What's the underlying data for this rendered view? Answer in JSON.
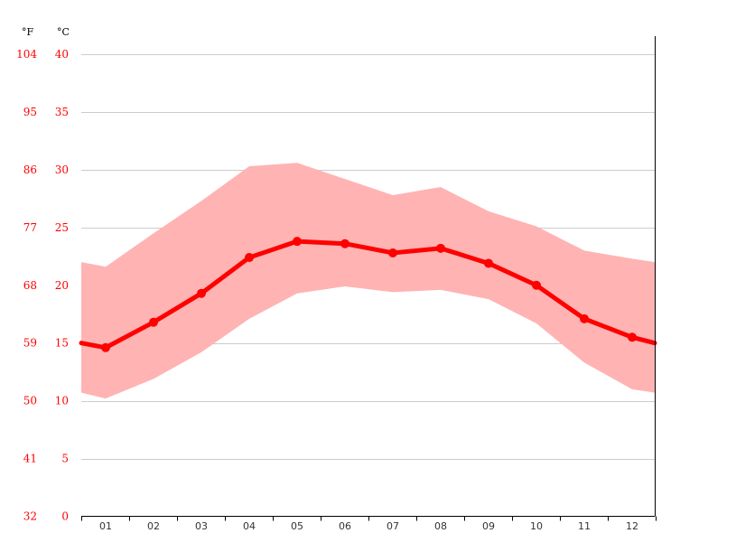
{
  "chart_data": {
    "type": "line",
    "categories": [
      "01",
      "02",
      "03",
      "04",
      "05",
      "06",
      "07",
      "08",
      "09",
      "10",
      "11",
      "12"
    ],
    "unit_f_label": "°F",
    "unit_c_label": "°C",
    "c_ticks": [
      0,
      5,
      10,
      15,
      20,
      25,
      30,
      35,
      40
    ],
    "f_ticks": [
      32,
      41,
      50,
      59,
      68,
      77,
      86,
      95,
      104
    ],
    "ylim": [
      0,
      40
    ],
    "grid": true,
    "series": [
      {
        "role": "mean",
        "values": [
          14.6,
          16.8,
          19.3,
          22.4,
          23.8,
          23.6,
          22.8,
          23.2,
          21.9,
          20.0,
          17.1,
          15.5
        ]
      },
      {
        "role": "max",
        "values": [
          21.6,
          24.5,
          27.3,
          30.3,
          30.6,
          29.2,
          27.8,
          28.5,
          26.4,
          25.1,
          23.0,
          22.3
        ]
      },
      {
        "role": "min",
        "values": [
          10.2,
          11.9,
          14.2,
          17.1,
          19.3,
          19.9,
          19.4,
          19.6,
          18.8,
          16.7,
          13.3,
          11.0
        ]
      }
    ],
    "edge_values": {
      "left": {
        "mean": 15.0,
        "max": 22.0,
        "min": 10.7
      },
      "right": {
        "mean": 15.0,
        "max": 22.0,
        "min": 10.7
      }
    },
    "colors": {
      "line": "#ff0000",
      "band": "#ffb3b3",
      "grid": "#cccccc",
      "axis": "#000000",
      "label": "#ff0000"
    }
  }
}
